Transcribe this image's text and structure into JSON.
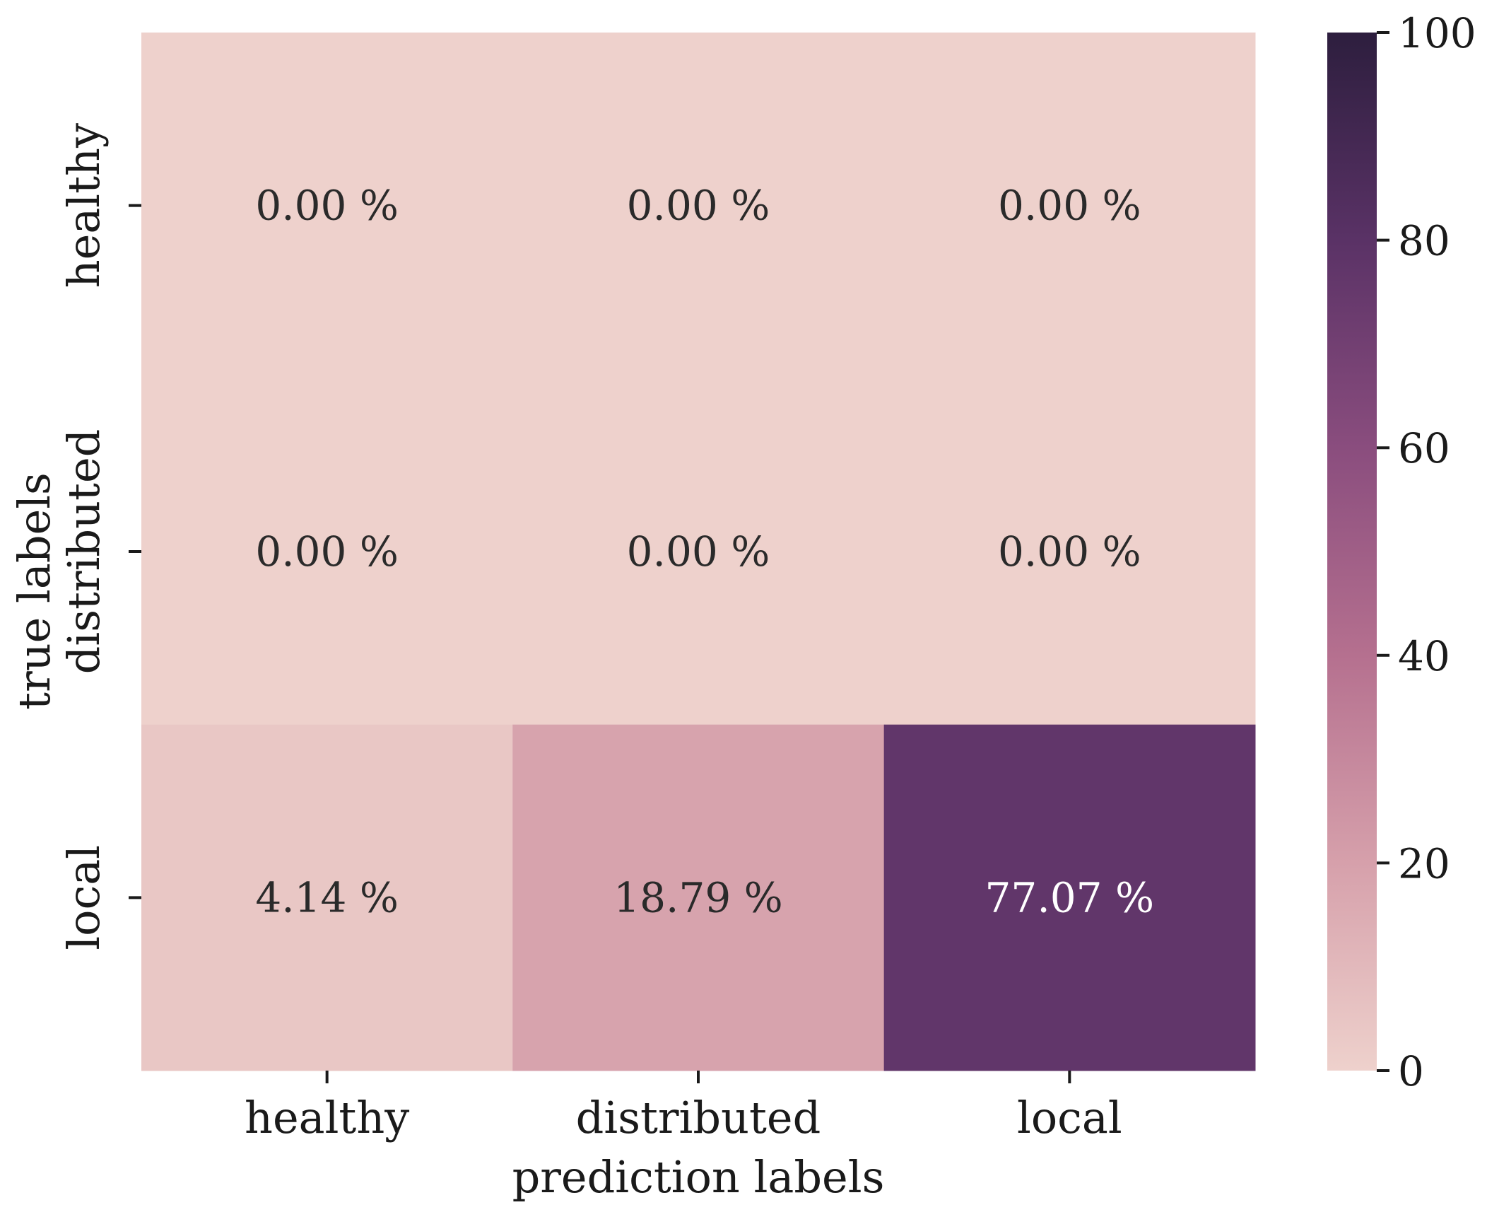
{
  "chart_data": {
    "type": "heatmap",
    "title": "",
    "xlabel": "prediction labels",
    "ylabel": "true labels",
    "x_categories": [
      "healthy",
      "distributed",
      "local"
    ],
    "y_categories": [
      "healthy",
      "distributed",
      "local"
    ],
    "values": [
      [
        0.0,
        0.0,
        0.0
      ],
      [
        0.0,
        0.0,
        0.0
      ],
      [
        4.14,
        18.79,
        77.07
      ]
    ],
    "cell_labels": [
      [
        "0.00 %",
        "0.00 %",
        "0.00 %"
      ],
      [
        "0.00 %",
        "0.00 %",
        "0.00 %"
      ],
      [
        "4.14 %",
        "18.79 %",
        "77.07 %"
      ]
    ],
    "colorbar": {
      "range": [
        0,
        100
      ],
      "ticks": [
        0,
        20,
        40,
        60,
        80,
        100
      ],
      "tick_labels": [
        "0",
        "20",
        "40",
        "60",
        "80",
        "100"
      ],
      "colors": [
        "#eed1cc",
        "#d6a0ab",
        "#b5708f",
        "#8a4d7e",
        "#5a3266",
        "#2d1e3e"
      ]
    },
    "grid": false,
    "legend": "colorbar-right"
  }
}
